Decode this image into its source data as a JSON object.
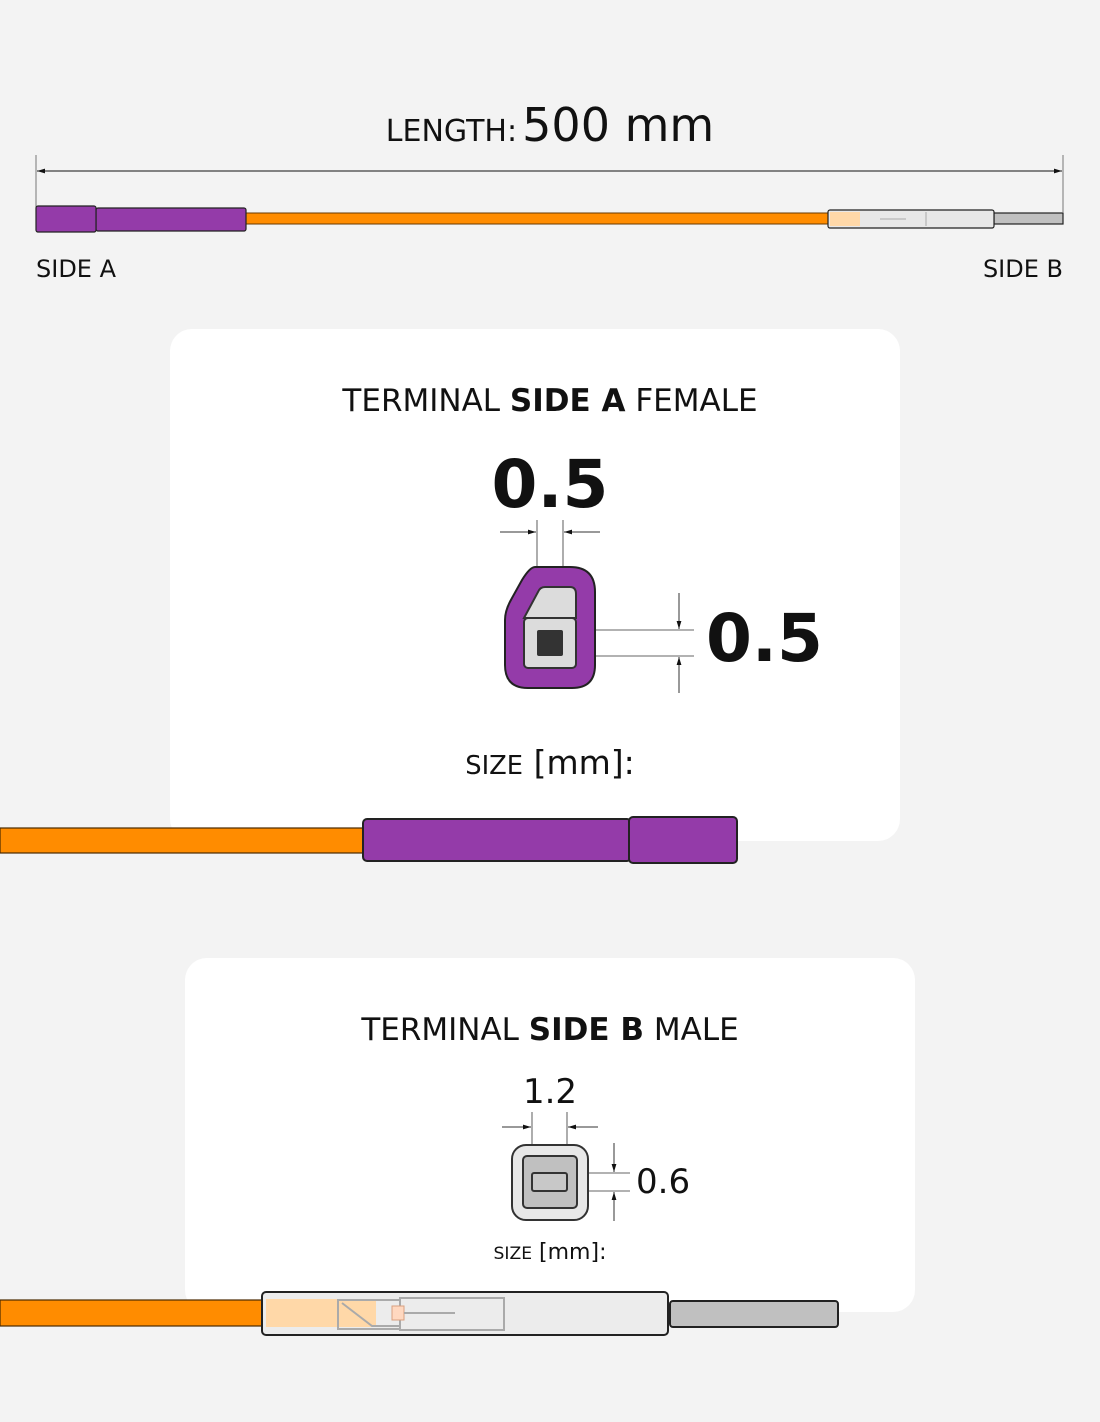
{
  "length": {
    "label": "LENGTH:",
    "value": "500 mm"
  },
  "side_a_label": "SIDE A",
  "side_b_label": "SIDE B",
  "card_a": {
    "title_prefix": "TERMINAL",
    "title_bold": "SIDE A",
    "title_suffix": "FEMALE",
    "width_dim": "0.5",
    "height_dim": "0.5",
    "size_label": "SIZE",
    "size_unit": "[mm]:"
  },
  "card_b": {
    "title_prefix": "TERMINAL",
    "title_bold": "SIDE B",
    "title_suffix": "MALE",
    "width_dim": "1.2",
    "height_dim": "0.6",
    "size_label": "SIZE",
    "size_unit": "[mm]:"
  },
  "colors": {
    "wire": "#ff8c00",
    "housing": "#943ba9",
    "background": "#f3f3f3",
    "card": "#ffffff",
    "metal": "#c0c0c0"
  }
}
